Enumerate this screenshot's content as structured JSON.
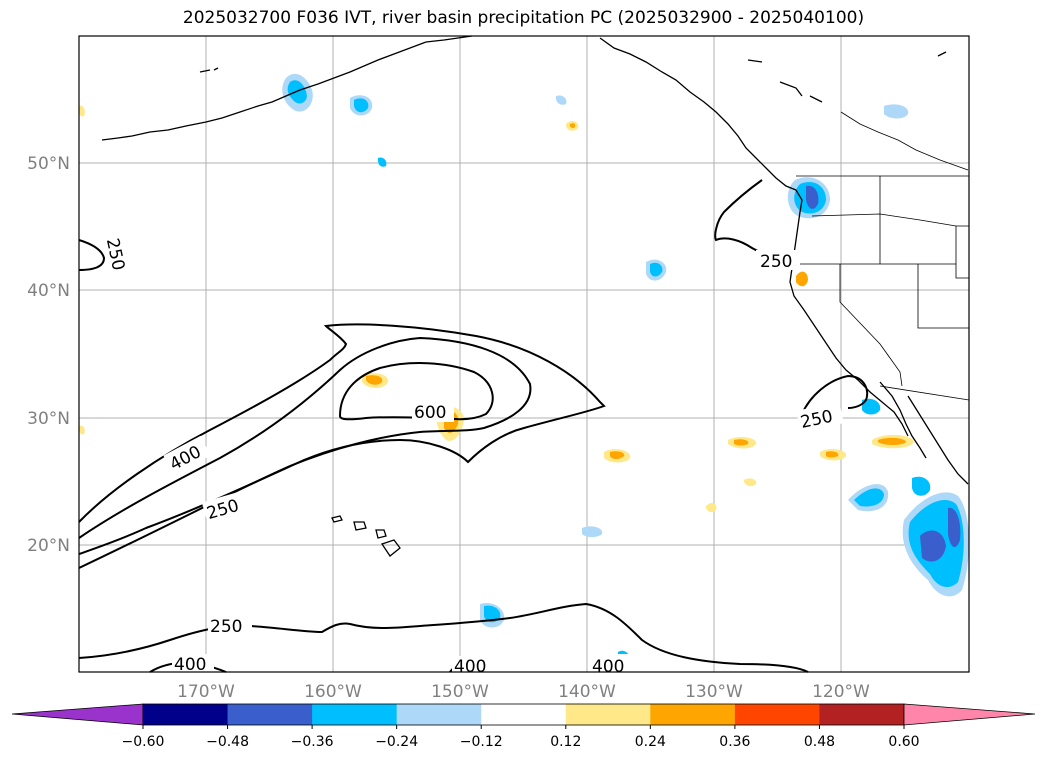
{
  "title": "2025032700 F036 IVT, river basin precipitation PC (2025032900 - 2025040100)",
  "lat_labels": [
    "50°N",
    "40°N",
    "30°N",
    "20°N"
  ],
  "lon_labels": [
    "170°W",
    "160°W",
    "150°W",
    "140°W",
    "130°W",
    "120°W"
  ],
  "contour_labels": [
    "250",
    "250",
    "250",
    "400",
    "250",
    "600",
    "250",
    "400",
    "400",
    "400"
  ],
  "colorbar": {
    "ticks": [
      "−0.60",
      "−0.48",
      "−0.36",
      "−0.24",
      "−0.12",
      "0.12",
      "0.24",
      "0.36",
      "0.48",
      "0.60"
    ],
    "colors": [
      "#9933cc",
      "#00008b",
      "#3a5fcd",
      "#00bfff",
      "#add8f7",
      "#ffffff",
      "#ffe88a",
      "#ffa500",
      "#ff4500",
      "#b22222",
      "#ff86aa"
    ]
  },
  "colors": {
    "contour": "#000000",
    "grid": "#b0b0b0",
    "coast": "#000000",
    "neg_light": "#add8f7",
    "neg_mid": "#00bfff",
    "neg_dark": "#3a5fcd",
    "pos_light": "#ffe88a",
    "pos_mid": "#ffa500"
  }
}
